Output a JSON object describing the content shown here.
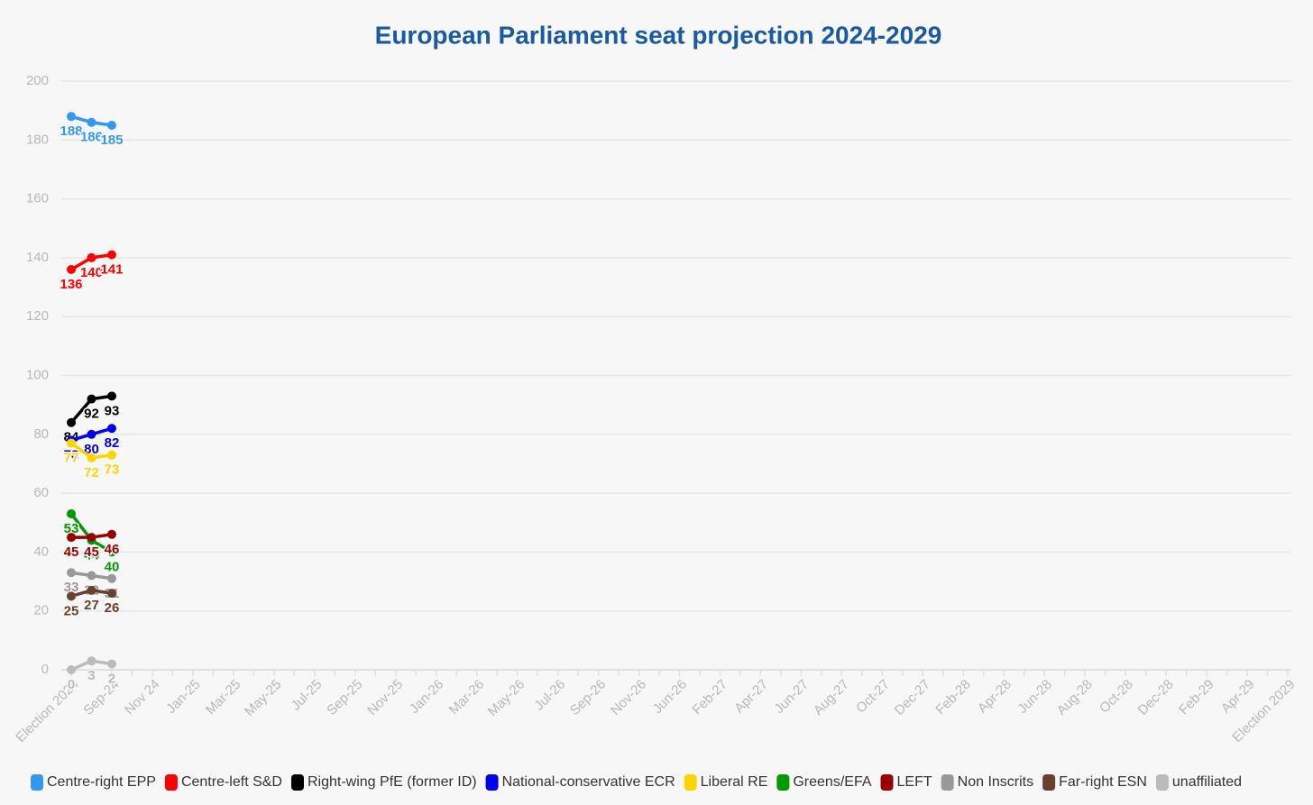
{
  "chart_data": {
    "type": "line",
    "title": "European Parliament seat projection 2024-2029",
    "categories": [
      "Election 2024",
      null,
      "Sep-24",
      null,
      "Nov 24",
      null,
      "Jan-25",
      null,
      "Mar-25",
      null,
      "May-25",
      null,
      "Jul-25",
      null,
      "Sep-25",
      null,
      "Nov-25",
      null,
      "Jan-26",
      null,
      "Mar-26",
      null,
      "May-26",
      null,
      "Jul-26",
      null,
      "Sep-26",
      null,
      "Nov-26",
      null,
      "Jun-26",
      null,
      "Feb-27",
      null,
      "Apr-27",
      null,
      "Jun-27",
      null,
      "Aug-27",
      null,
      "Oct-27",
      null,
      "Dec-27",
      null,
      "Feb-28",
      null,
      "Apr-28",
      null,
      "Jun-28",
      null,
      "Aug-28",
      null,
      "Oct-28",
      null,
      "Dec-28",
      null,
      "Feb-29",
      null,
      "Apr-29",
      null,
      "Election 2029"
    ],
    "ylim": [
      0,
      200
    ],
    "yticks": [
      0,
      20,
      40,
      60,
      80,
      100,
      120,
      140,
      160,
      180,
      200
    ],
    "grid": true,
    "series": [
      {
        "name": "Centre-right EPP",
        "color": "#3399ee",
        "values": [
          188,
          186,
          185,
          null,
          null,
          null,
          null,
          null,
          null,
          null,
          null,
          null,
          null,
          null,
          null,
          null,
          null,
          null,
          null,
          null,
          null,
          null,
          null,
          null,
          null,
          null,
          null,
          null,
          null,
          null,
          null,
          null,
          null,
          null,
          null,
          null,
          null,
          null,
          null,
          null,
          null,
          null,
          null,
          null,
          null,
          null,
          null,
          null,
          null,
          null,
          null,
          null,
          null,
          null,
          null,
          null,
          null,
          null,
          null,
          null,
          null
        ]
      },
      {
        "name": "Centre-left S&D",
        "color": "#ff0000",
        "values": [
          136,
          140,
          141,
          null,
          null,
          null,
          null,
          null,
          null,
          null,
          null,
          null,
          null,
          null,
          null,
          null,
          null,
          null,
          null,
          null,
          null,
          null,
          null,
          null,
          null,
          null,
          null,
          null,
          null,
          null,
          null,
          null,
          null,
          null,
          null,
          null,
          null,
          null,
          null,
          null,
          null,
          null,
          null,
          null,
          null,
          null,
          null,
          null,
          null,
          null,
          null,
          null,
          null,
          null,
          null,
          null,
          null,
          null,
          null,
          null,
          null
        ]
      },
      {
        "name": "Right-wing PfE (former ID)",
        "color": "#000000",
        "values": [
          84,
          92,
          93,
          null,
          null,
          null,
          null,
          null,
          null,
          null,
          null,
          null,
          null,
          null,
          null,
          null,
          null,
          null,
          null,
          null,
          null,
          null,
          null,
          null,
          null,
          null,
          null,
          null,
          null,
          null,
          null,
          null,
          null,
          null,
          null,
          null,
          null,
          null,
          null,
          null,
          null,
          null,
          null,
          null,
          null,
          null,
          null,
          null,
          null,
          null,
          null,
          null,
          null,
          null,
          null,
          null,
          null,
          null,
          null,
          null,
          null
        ]
      },
      {
        "name": "National-conservative ECR",
        "color": "#0000ee",
        "values": [
          78,
          80,
          82,
          null,
          null,
          null,
          null,
          null,
          null,
          null,
          null,
          null,
          null,
          null,
          null,
          null,
          null,
          null,
          null,
          null,
          null,
          null,
          null,
          null,
          null,
          null,
          null,
          null,
          null,
          null,
          null,
          null,
          null,
          null,
          null,
          null,
          null,
          null,
          null,
          null,
          null,
          null,
          null,
          null,
          null,
          null,
          null,
          null,
          null,
          null,
          null,
          null,
          null,
          null,
          null,
          null,
          null,
          null,
          null,
          null,
          null
        ]
      },
      {
        "name": "Liberal RE",
        "color": "#ffd500",
        "values": [
          77,
          72,
          73,
          null,
          null,
          null,
          null,
          null,
          null,
          null,
          null,
          null,
          null,
          null,
          null,
          null,
          null,
          null,
          null,
          null,
          null,
          null,
          null,
          null,
          null,
          null,
          null,
          null,
          null,
          null,
          null,
          null,
          null,
          null,
          null,
          null,
          null,
          null,
          null,
          null,
          null,
          null,
          null,
          null,
          null,
          null,
          null,
          null,
          null,
          null,
          null,
          null,
          null,
          null,
          null,
          null,
          null,
          null,
          null,
          null,
          null
        ]
      },
      {
        "name": "Greens/EFA",
        "color": "#009900",
        "values": [
          53,
          44,
          40,
          null,
          null,
          null,
          null,
          null,
          null,
          null,
          null,
          null,
          null,
          null,
          null,
          null,
          null,
          null,
          null,
          null,
          null,
          null,
          null,
          null,
          null,
          null,
          null,
          null,
          null,
          null,
          null,
          null,
          null,
          null,
          null,
          null,
          null,
          null,
          null,
          null,
          null,
          null,
          null,
          null,
          null,
          null,
          null,
          null,
          null,
          null,
          null,
          null,
          null,
          null,
          null,
          null,
          null,
          null,
          null,
          null,
          null
        ]
      },
      {
        "name": "LEFT",
        "color": "#990000",
        "values": [
          45,
          45,
          46,
          null,
          null,
          null,
          null,
          null,
          null,
          null,
          null,
          null,
          null,
          null,
          null,
          null,
          null,
          null,
          null,
          null,
          null,
          null,
          null,
          null,
          null,
          null,
          null,
          null,
          null,
          null,
          null,
          null,
          null,
          null,
          null,
          null,
          null,
          null,
          null,
          null,
          null,
          null,
          null,
          null,
          null,
          null,
          null,
          null,
          null,
          null,
          null,
          null,
          null,
          null,
          null,
          null,
          null,
          null,
          null,
          null,
          null
        ]
      },
      {
        "name": "Non Inscrits",
        "color": "#999999",
        "values": [
          33,
          32,
          31,
          null,
          null,
          null,
          null,
          null,
          null,
          null,
          null,
          null,
          null,
          null,
          null,
          null,
          null,
          null,
          null,
          null,
          null,
          null,
          null,
          null,
          null,
          null,
          null,
          null,
          null,
          null,
          null,
          null,
          null,
          null,
          null,
          null,
          null,
          null,
          null,
          null,
          null,
          null,
          null,
          null,
          null,
          null,
          null,
          null,
          null,
          null,
          null,
          null,
          null,
          null,
          null,
          null,
          null,
          null,
          null,
          null,
          null
        ]
      },
      {
        "name": "Far-right ESN",
        "color": "#6b3f2f",
        "values": [
          25,
          27,
          26,
          null,
          null,
          null,
          null,
          null,
          null,
          null,
          null,
          null,
          null,
          null,
          null,
          null,
          null,
          null,
          null,
          null,
          null,
          null,
          null,
          null,
          null,
          null,
          null,
          null,
          null,
          null,
          null,
          null,
          null,
          null,
          null,
          null,
          null,
          null,
          null,
          null,
          null,
          null,
          null,
          null,
          null,
          null,
          null,
          null,
          null,
          null,
          null,
          null,
          null,
          null,
          null,
          null,
          null,
          null,
          null,
          null,
          null
        ]
      },
      {
        "name": "unaffiliated",
        "color": "#bbbbbb",
        "values": [
          0,
          3,
          2,
          null,
          null,
          null,
          null,
          null,
          null,
          null,
          null,
          null,
          null,
          null,
          null,
          null,
          null,
          null,
          null,
          null,
          null,
          null,
          null,
          null,
          null,
          null,
          null,
          null,
          null,
          null,
          null,
          null,
          null,
          null,
          null,
          null,
          null,
          null,
          null,
          null,
          null,
          null,
          null,
          null,
          null,
          null,
          null,
          null,
          null,
          null,
          null,
          null,
          null,
          null,
          null,
          null,
          null,
          null,
          null,
          null,
          null
        ]
      }
    ]
  }
}
